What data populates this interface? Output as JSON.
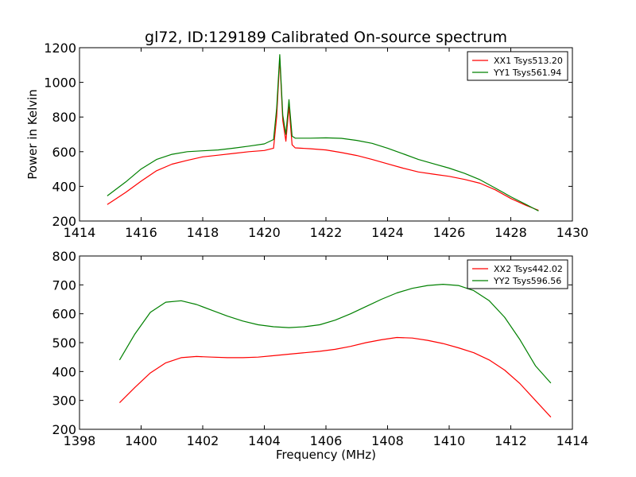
{
  "figure": {
    "title": "gl72, ID:129189 Calibrated On-source spectrum"
  },
  "chart_data": [
    {
      "type": "line",
      "title": "gl72, ID:129189 Calibrated On-source spectrum",
      "xlabel": "",
      "ylabel": "Power in Kelvin",
      "xlim": [
        1414,
        1430
      ],
      "ylim": [
        200,
        1200
      ],
      "xticks": [
        1414,
        1416,
        1418,
        1420,
        1422,
        1424,
        1426,
        1428,
        1430
      ],
      "yticks": [
        200,
        400,
        600,
        800,
        1000,
        1200
      ],
      "grid": false,
      "legend_position": "top-right",
      "series": [
        {
          "name": "XX1 Tsys513.20",
          "color": "#ff0000",
          "x": [
            1414.9,
            1415.5,
            1416.0,
            1416.5,
            1417.0,
            1417.5,
            1418.0,
            1418.5,
            1419.0,
            1419.5,
            1420.0,
            1420.3,
            1420.4,
            1420.5,
            1420.6,
            1420.7,
            1420.8,
            1420.9,
            1421.0,
            1421.5,
            1422.0,
            1422.5,
            1423.0,
            1423.5,
            1424.0,
            1424.5,
            1425.0,
            1425.5,
            1426.0,
            1426.5,
            1427.0,
            1427.5,
            1428.0,
            1428.5,
            1428.9
          ],
          "y": [
            295,
            365,
            430,
            490,
            528,
            550,
            570,
            580,
            590,
            600,
            607,
            620,
            800,
            1140,
            780,
            660,
            860,
            640,
            622,
            617,
            610,
            595,
            578,
            555,
            530,
            505,
            483,
            470,
            458,
            440,
            418,
            380,
            330,
            290,
            262
          ]
        },
        {
          "name": "YY1 Tsys561.94",
          "color": "#008000",
          "x": [
            1414.9,
            1415.5,
            1416.0,
            1416.5,
            1417.0,
            1417.5,
            1418.0,
            1418.5,
            1419.0,
            1419.5,
            1420.0,
            1420.3,
            1420.4,
            1420.5,
            1420.6,
            1420.7,
            1420.8,
            1420.9,
            1421.0,
            1421.5,
            1422.0,
            1422.5,
            1423.0,
            1423.5,
            1424.0,
            1424.5,
            1425.0,
            1425.5,
            1426.0,
            1426.5,
            1427.0,
            1427.5,
            1428.0,
            1428.5,
            1428.9
          ],
          "y": [
            345,
            425,
            500,
            555,
            585,
            600,
            605,
            610,
            620,
            632,
            645,
            670,
            850,
            1160,
            810,
            700,
            900,
            690,
            678,
            678,
            680,
            677,
            665,
            648,
            620,
            588,
            555,
            530,
            505,
            475,
            438,
            390,
            340,
            295,
            258
          ]
        }
      ]
    },
    {
      "type": "line",
      "title": "",
      "xlabel": "Frequency (MHz)",
      "ylabel": "",
      "xlim": [
        1398,
        1414
      ],
      "ylim": [
        200,
        800
      ],
      "xticks": [
        1398,
        1400,
        1402,
        1404,
        1406,
        1408,
        1410,
        1412,
        1414
      ],
      "yticks": [
        200,
        300,
        400,
        500,
        600,
        700,
        800
      ],
      "grid": false,
      "legend_position": "top-right",
      "series": [
        {
          "name": "XX2 Tsys442.02",
          "color": "#ff0000",
          "x": [
            1399.3,
            1399.8,
            1400.3,
            1400.8,
            1401.3,
            1401.8,
            1402.3,
            1402.8,
            1403.3,
            1403.8,
            1404.3,
            1404.8,
            1405.3,
            1405.8,
            1406.3,
            1406.8,
            1407.3,
            1407.8,
            1408.3,
            1408.8,
            1409.3,
            1409.8,
            1410.3,
            1410.8,
            1411.3,
            1411.8,
            1412.3,
            1412.8,
            1413.3
          ],
          "y": [
            292,
            345,
            395,
            430,
            448,
            452,
            450,
            448,
            448,
            450,
            455,
            460,
            465,
            470,
            477,
            487,
            500,
            510,
            518,
            516,
            508,
            497,
            482,
            465,
            440,
            405,
            358,
            300,
            242
          ]
        },
        {
          "name": "YY2 Tsys596.56",
          "color": "#008000",
          "x": [
            1399.3,
            1399.8,
            1400.3,
            1400.8,
            1401.3,
            1401.8,
            1402.3,
            1402.8,
            1403.3,
            1403.8,
            1404.3,
            1404.8,
            1405.3,
            1405.8,
            1406.3,
            1406.8,
            1407.3,
            1407.8,
            1408.3,
            1408.8,
            1409.3,
            1409.8,
            1410.3,
            1410.8,
            1411.3,
            1411.8,
            1412.3,
            1412.8,
            1413.3
          ],
          "y": [
            440,
            530,
            605,
            640,
            645,
            632,
            612,
            592,
            575,
            562,
            555,
            552,
            555,
            562,
            578,
            600,
            625,
            650,
            672,
            688,
            698,
            702,
            698,
            680,
            645,
            588,
            510,
            420,
            360
          ]
        }
      ]
    }
  ]
}
